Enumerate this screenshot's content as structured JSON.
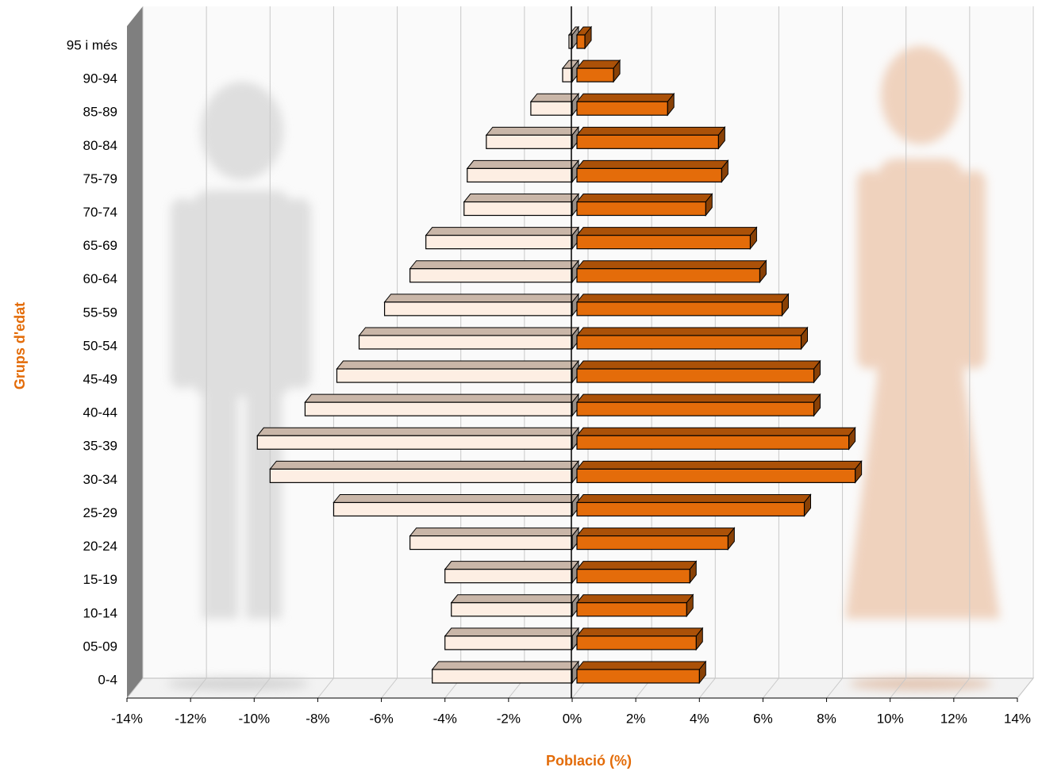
{
  "chart_data": {
    "type": "pyramid",
    "x_label": "Població (%)",
    "y_label": "Grups d'edat",
    "categories": [
      "0-4",
      "05-09",
      "10-14",
      "15-19",
      "20-24",
      "25-29",
      "30-34",
      "35-39",
      "40-44",
      "45-49",
      "50-54",
      "55-59",
      "60-64",
      "65-69",
      "70-74",
      "75-79",
      "80-84",
      "85-89",
      "90-94",
      "95 i més"
    ],
    "series": [
      {
        "color": "#fdeee3",
        "values": [
          -4.4,
          -4.0,
          -3.8,
          -4.0,
          -5.1,
          -7.5,
          -9.5,
          -9.9,
          -8.4,
          -7.4,
          -6.7,
          -5.9,
          -5.1,
          -4.6,
          -3.4,
          -3.3,
          -2.7,
          -1.3,
          -0.3,
          -0.1
        ]
      },
      {
        "color": "#e46c0a",
        "values": [
          4.0,
          3.9,
          3.6,
          3.7,
          4.9,
          7.3,
          8.9,
          8.7,
          7.6,
          7.6,
          7.2,
          6.6,
          5.9,
          5.6,
          4.2,
          4.7,
          4.6,
          3.0,
          1.3,
          0.4
        ]
      }
    ],
    "xlim": [
      -14,
      14
    ],
    "xticks": [
      {
        "value": -14,
        "label": "-14%"
      },
      {
        "value": -12,
        "label": "-12%"
      },
      {
        "value": -10,
        "label": "-10%"
      },
      {
        "value": -8,
        "label": "-8%"
      },
      {
        "value": -6,
        "label": "-6%"
      },
      {
        "value": -4,
        "label": "-4%"
      },
      {
        "value": -2,
        "label": "-2%"
      },
      {
        "value": 0,
        "label": "0%"
      },
      {
        "value": 2,
        "label": "2%"
      },
      {
        "value": 4,
        "label": "4%"
      },
      {
        "value": 6,
        "label": "6%"
      },
      {
        "value": 8,
        "label": "8%"
      },
      {
        "value": 10,
        "label": "10%"
      },
      {
        "value": 12,
        "label": "12%"
      },
      {
        "value": 14,
        "label": "14%"
      }
    ],
    "grid": true
  }
}
